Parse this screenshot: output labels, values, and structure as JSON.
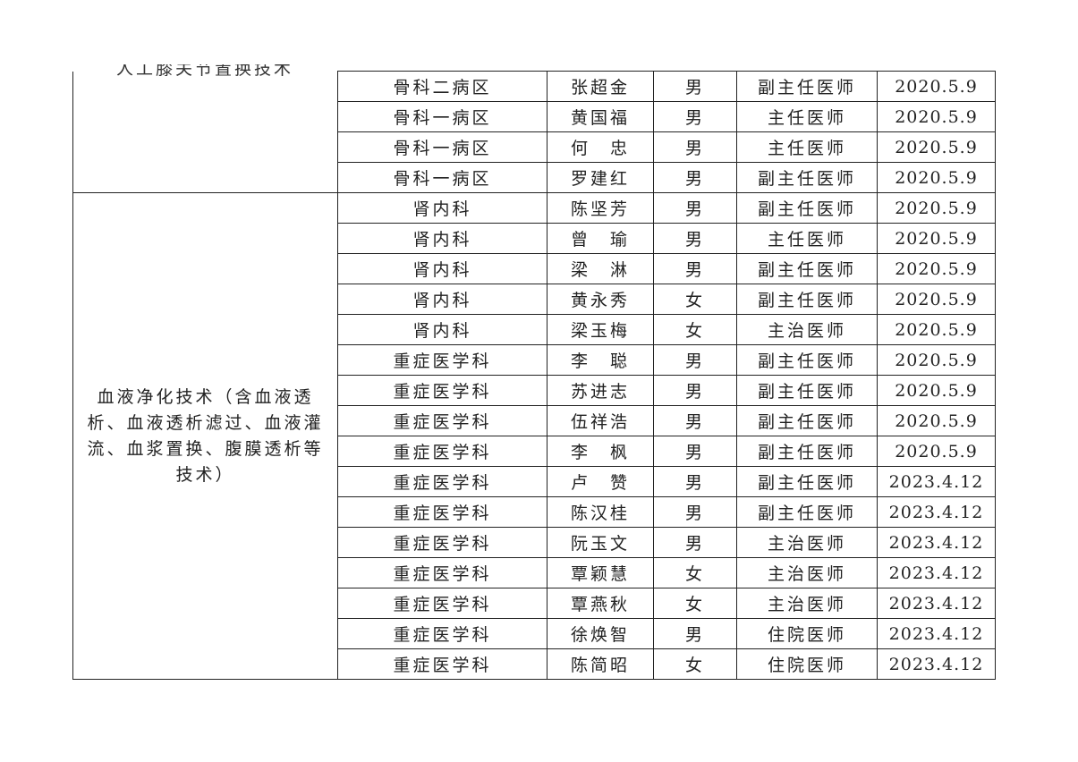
{
  "groups": [
    {
      "technique": "人工膝关节置换技术",
      "rows": [
        [
          "骨科二病区",
          "张超金",
          "男",
          "副主任医师",
          "2020.5.9"
        ],
        [
          "骨科一病区",
          "黄国福",
          "男",
          "主任医师",
          "2020.5.9"
        ],
        [
          "骨科一病区",
          "何　忠",
          "男",
          "主任医师",
          "2020.5.9"
        ],
        [
          "骨科一病区",
          "罗建红",
          "男",
          "副主任医师",
          "2020.5.9"
        ]
      ]
    },
    {
      "technique": "血液净化技术（含血液透析、血液透析滤过、血液灌流、血浆置换、腹膜透析等技术）",
      "rows": [
        [
          "肾内科",
          "陈坚芳",
          "男",
          "副主任医师",
          "2020.5.9"
        ],
        [
          "肾内科",
          "曾　瑜",
          "男",
          "主任医师",
          "2020.5.9"
        ],
        [
          "肾内科",
          "梁　淋",
          "男",
          "副主任医师",
          "2020.5.9"
        ],
        [
          "肾内科",
          "黄永秀",
          "女",
          "副主任医师",
          "2020.5.9"
        ],
        [
          "肾内科",
          "梁玉梅",
          "女",
          "主治医师",
          "2020.5.9"
        ],
        [
          "重症医学科",
          "李　聪",
          "男",
          "副主任医师",
          "2020.5.9"
        ],
        [
          "重症医学科",
          "苏进志",
          "男",
          "副主任医师",
          "2020.5.9"
        ],
        [
          "重症医学科",
          "伍祥浩",
          "男",
          "副主任医师",
          "2020.5.9"
        ],
        [
          "重症医学科",
          "李　枫",
          "男",
          "副主任医师",
          "2020.5.9"
        ],
        [
          "重症医学科",
          "卢　赞",
          "男",
          "副主任医师",
          "2023.4.12"
        ],
        [
          "重症医学科",
          "陈汉桂",
          "男",
          "副主任医师",
          "2023.4.12"
        ],
        [
          "重症医学科",
          "阮玉文",
          "男",
          "主治医师",
          "2023.4.12"
        ],
        [
          "重症医学科",
          "覃颖慧",
          "女",
          "主治医师",
          "2023.4.12"
        ],
        [
          "重症医学科",
          "覃燕秋",
          "女",
          "主治医师",
          "2023.4.12"
        ],
        [
          "重症医学科",
          "徐焕智",
          "男",
          "住院医师",
          "2023.4.12"
        ],
        [
          "重症医学科",
          "陈简昭",
          "女",
          "住院医师",
          "2023.4.12"
        ]
      ]
    }
  ]
}
